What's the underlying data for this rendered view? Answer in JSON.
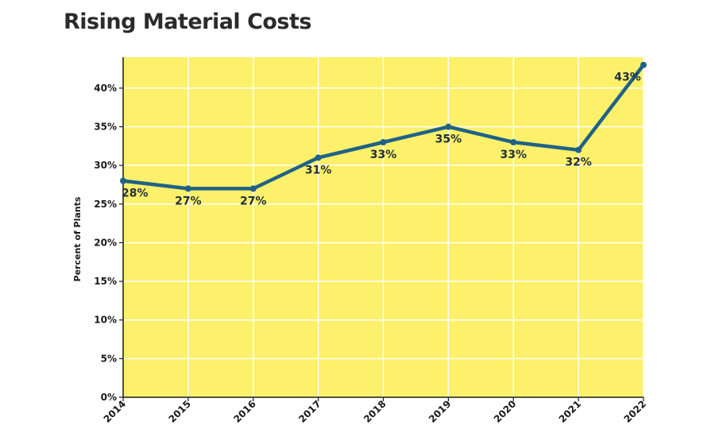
{
  "chart_data": {
    "type": "line",
    "title": "Rising Material Costs",
    "xlabel": "",
    "ylabel": "Percent of Plants",
    "x": [
      "2014",
      "2015",
      "2016",
      "2017",
      "2018",
      "2019",
      "2020",
      "2021",
      "2022"
    ],
    "series": [
      {
        "values": [
          28,
          27,
          27,
          31,
          33,
          35,
          33,
          32,
          43
        ],
        "labels": [
          "28%",
          "27%",
          "27%",
          "31%",
          "33%",
          "35%",
          "33%",
          "32%",
          "43%"
        ]
      }
    ],
    "ylim": [
      0,
      44
    ],
    "yticks": [
      0,
      5,
      10,
      15,
      20,
      25,
      30,
      35,
      40
    ],
    "ytick_labels": [
      "0%",
      "5%",
      "10%",
      "15%",
      "20%",
      "25%",
      "30%",
      "35%",
      "40%"
    ],
    "grid": true,
    "legend": "none",
    "colors": {
      "background": "#fdf06a",
      "line": "#1f6287",
      "grid": "#ffffff",
      "axis": "#1a1a1a"
    }
  }
}
